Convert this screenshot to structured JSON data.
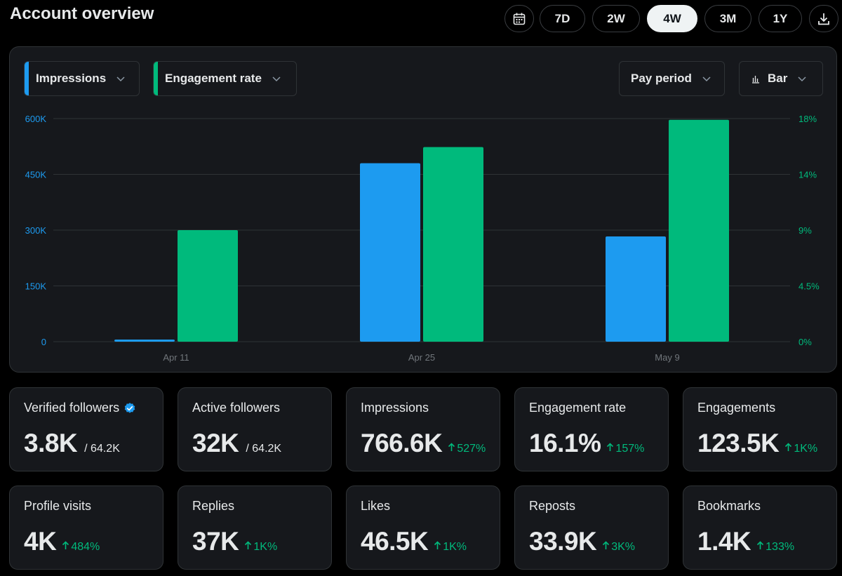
{
  "header": {
    "title": "Account overview",
    "ranges": [
      "7D",
      "2W",
      "4W",
      "3M",
      "1Y"
    ],
    "active_range": "4W"
  },
  "selectors": {
    "metric1": "Impressions",
    "metric2": "Engagement rate",
    "period": "Pay period",
    "chart_type": "Bar"
  },
  "colors": {
    "impressions": "#1d9bf0",
    "engagement": "#00ba7c"
  },
  "chart_data": {
    "type": "bar",
    "categories": [
      "Apr 11",
      "Apr 25",
      "May 9"
    ],
    "series": [
      {
        "name": "Impressions",
        "axis": "left",
        "values": [
          4000,
          480000,
          283000
        ]
      },
      {
        "name": "Engagement rate",
        "axis": "right",
        "values": [
          9.0,
          15.7,
          17.9
        ]
      }
    ],
    "ylim_left": [
      0,
      600000
    ],
    "yticks_left": [
      "0",
      "150K",
      "300K",
      "450K",
      "600K"
    ],
    "ylim_right": [
      0,
      18
    ],
    "yticks_right": [
      "0%",
      "4.5%",
      "9%",
      "14%",
      "18%"
    ],
    "grid": true
  },
  "cards": [
    {
      "label": "Verified followers",
      "value": "3.8K",
      "sub": "/ 64.2K",
      "verified": true
    },
    {
      "label": "Active followers",
      "value": "32K",
      "sub": "/ 64.2K"
    },
    {
      "label": "Impressions",
      "value": "766.6K",
      "change": "527%"
    },
    {
      "label": "Engagement rate",
      "value": "16.1%",
      "change": "157%"
    },
    {
      "label": "Engagements",
      "value": "123.5K",
      "change": "1K%"
    },
    {
      "label": "Profile visits",
      "value": "4K",
      "change": "484%"
    },
    {
      "label": "Replies",
      "value": "37K",
      "change": "1K%"
    },
    {
      "label": "Likes",
      "value": "46.5K",
      "change": "1K%"
    },
    {
      "label": "Reposts",
      "value": "33.9K",
      "change": "3K%"
    },
    {
      "label": "Bookmarks",
      "value": "1.4K",
      "change": "133%"
    }
  ]
}
